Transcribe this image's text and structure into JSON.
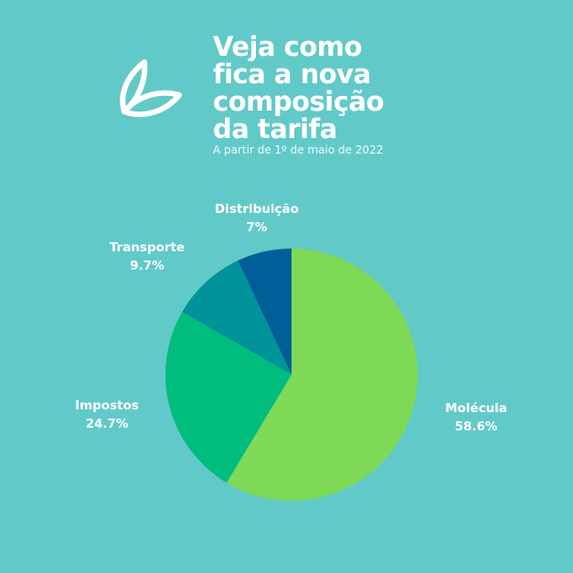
{
  "header": {
    "title": "Veja como\nfica a nova\ncomposição\nda tarifa",
    "subtitle": "A partir de 1º de maio de 2022",
    "logo_icon": "leaf-logo-icon"
  },
  "colors": {
    "background": "#62c9c9"
  },
  "chart_data": {
    "type": "pie",
    "start": "top",
    "direction": "clockwise",
    "categories": [
      "Molécula",
      "Impostos",
      "Transporte",
      "Distribuição"
    ],
    "values": [
      58.6,
      24.7,
      9.7,
      7
    ],
    "labels": [
      "58.6%",
      "24.7%",
      "9.7%",
      "7%"
    ],
    "colors": [
      "#7ed957",
      "#00bd7e",
      "#00939a",
      "#005f96"
    ]
  }
}
